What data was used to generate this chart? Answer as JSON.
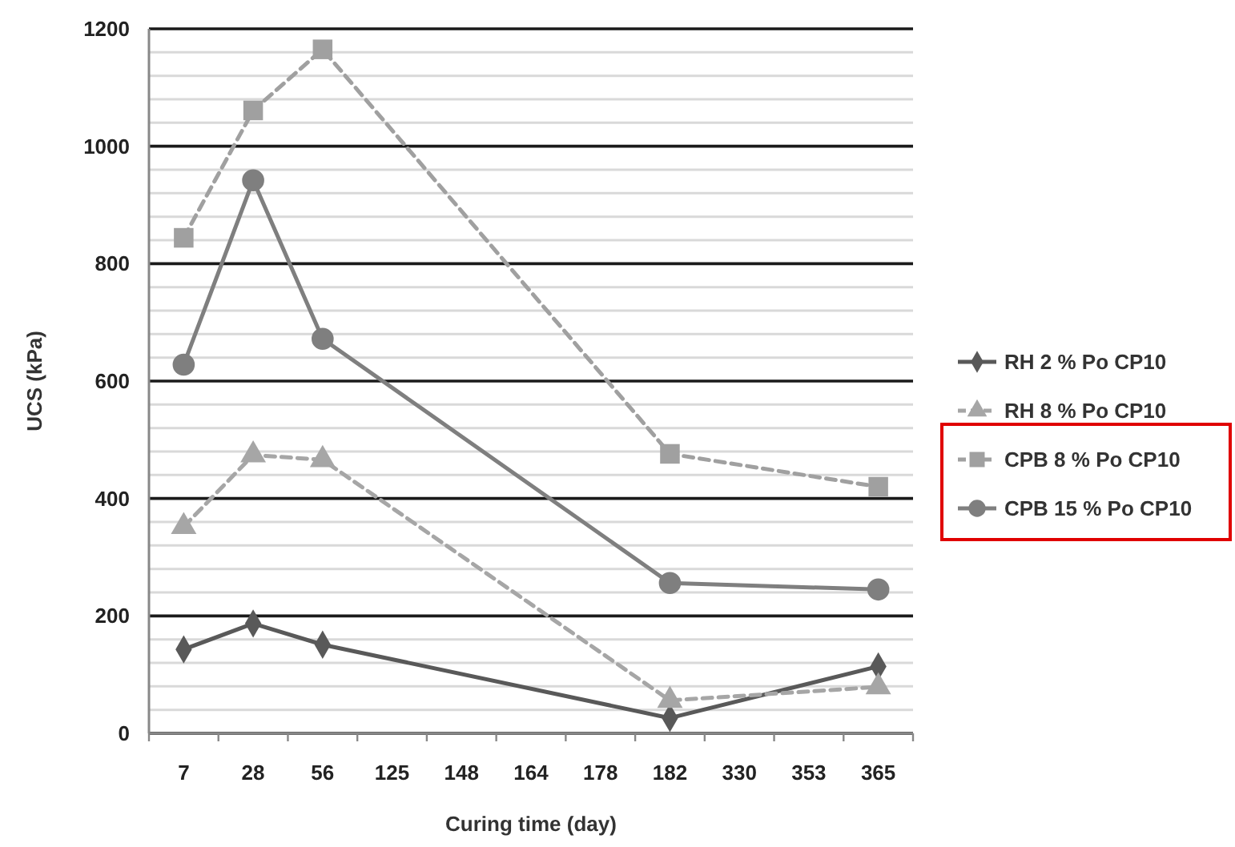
{
  "chart_data": {
    "type": "line",
    "xlabel": "Curing time (day)",
    "ylabel": "UCS (kPa)",
    "categories": [
      "7",
      "28",
      "56",
      "125",
      "148",
      "164",
      "178",
      "182",
      "330",
      "353",
      "365"
    ],
    "series": [
      {
        "name": "RH 2 % Po CP10",
        "color": "#595959",
        "marker": "diamond",
        "line_style": "solid",
        "values": [
          143,
          187,
          151,
          null,
          null,
          null,
          null,
          26,
          null,
          null,
          114
        ]
      },
      {
        "name": "RH 8 % Po CP10",
        "color": "#a6a6a6",
        "marker": "triangle",
        "line_style": "dashed",
        "values": [
          352,
          474,
          466,
          null,
          null,
          null,
          null,
          56,
          null,
          null,
          79
        ]
      },
      {
        "name": "CPB  8 % Po CP10",
        "color": "#a0a0a0",
        "marker": "square",
        "line_style": "dashed",
        "values": [
          844,
          1061,
          1165,
          null,
          null,
          null,
          null,
          476,
          null,
          null,
          420
        ]
      },
      {
        "name": "CPB  15 % Po CP10",
        "color": "#7f7f7f",
        "marker": "circle",
        "line_style": "solid",
        "values": [
          628,
          942,
          672,
          null,
          null,
          null,
          null,
          256,
          null,
          null,
          245
        ]
      }
    ],
    "ylim": [
      0,
      1200
    ],
    "yticks": [
      0,
      {
        "value": 40,
        "label": null
      },
      {
        "value": 80,
        "label": null
      },
      {
        "value": 120,
        "label": null
      },
      {
        "value": 160,
        "label": null
      },
      200,
      {
        "value": 240,
        "label": null
      },
      {
        "value": 280,
        "label": null
      },
      {
        "value": 320,
        "label": null
      },
      {
        "value": 360,
        "label": null
      },
      400,
      {
        "value": 440,
        "label": null
      },
      {
        "value": 480,
        "label": null
      },
      {
        "value": 520,
        "label": null
      },
      {
        "value": 560,
        "label": null
      },
      600,
      {
        "value": 640,
        "label": null
      },
      {
        "value": 680,
        "label": null
      },
      {
        "value": 720,
        "label": null
      },
      {
        "value": 760,
        "label": null
      },
      800,
      {
        "value": 840,
        "label": null
      },
      {
        "value": 880,
        "label": null
      },
      {
        "value": 920,
        "label": null
      },
      {
        "value": 960,
        "label": null
      },
      1000,
      {
        "value": 1040,
        "label": null
      },
      {
        "value": 1080,
        "label": null
      },
      {
        "value": 1120,
        "label": null
      },
      {
        "value": 1160,
        "label": null
      },
      1200
    ],
    "grid": "y",
    "legend": "right"
  }
}
